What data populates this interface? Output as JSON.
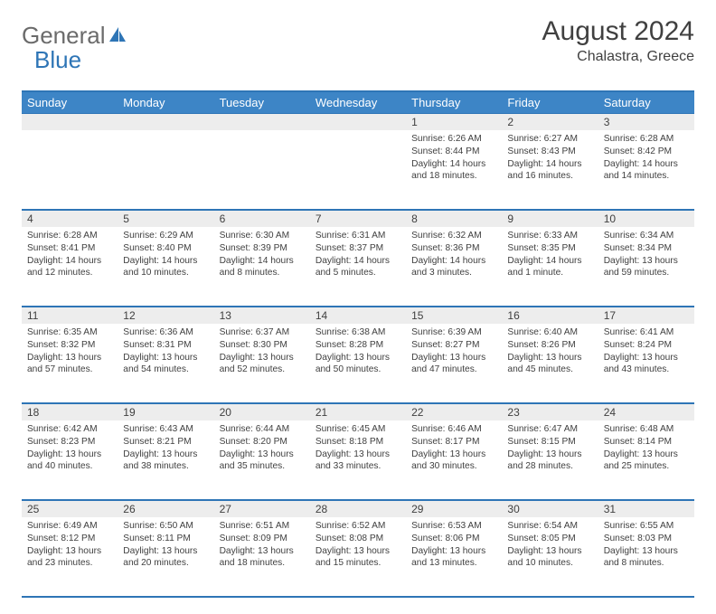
{
  "brand": {
    "general": "General",
    "blue": "Blue"
  },
  "title": {
    "month": "August 2024",
    "location": "Chalastra, Greece"
  },
  "colors": {
    "header_bg": "#3d85c6",
    "border": "#2e75b6",
    "daynum_bg": "#ededed",
    "text": "#404040",
    "logo_gray": "#6b6b6b",
    "logo_blue": "#2e75b6"
  },
  "weekdays": [
    "Sunday",
    "Monday",
    "Tuesday",
    "Wednesday",
    "Thursday",
    "Friday",
    "Saturday"
  ],
  "weeks": [
    {
      "nums": [
        "",
        "",
        "",
        "",
        "1",
        "2",
        "3"
      ],
      "cells": [
        null,
        null,
        null,
        null,
        {
          "sunrise": "6:26 AM",
          "sunset": "8:44 PM",
          "daylight": "14 hours and 18 minutes."
        },
        {
          "sunrise": "6:27 AM",
          "sunset": "8:43 PM",
          "daylight": "14 hours and 16 minutes."
        },
        {
          "sunrise": "6:28 AM",
          "sunset": "8:42 PM",
          "daylight": "14 hours and 14 minutes."
        }
      ]
    },
    {
      "nums": [
        "4",
        "5",
        "6",
        "7",
        "8",
        "9",
        "10"
      ],
      "cells": [
        {
          "sunrise": "6:28 AM",
          "sunset": "8:41 PM",
          "daylight": "14 hours and 12 minutes."
        },
        {
          "sunrise": "6:29 AM",
          "sunset": "8:40 PM",
          "daylight": "14 hours and 10 minutes."
        },
        {
          "sunrise": "6:30 AM",
          "sunset": "8:39 PM",
          "daylight": "14 hours and 8 minutes."
        },
        {
          "sunrise": "6:31 AM",
          "sunset": "8:37 PM",
          "daylight": "14 hours and 5 minutes."
        },
        {
          "sunrise": "6:32 AM",
          "sunset": "8:36 PM",
          "daylight": "14 hours and 3 minutes."
        },
        {
          "sunrise": "6:33 AM",
          "sunset": "8:35 PM",
          "daylight": "14 hours and 1 minute."
        },
        {
          "sunrise": "6:34 AM",
          "sunset": "8:34 PM",
          "daylight": "13 hours and 59 minutes."
        }
      ]
    },
    {
      "nums": [
        "11",
        "12",
        "13",
        "14",
        "15",
        "16",
        "17"
      ],
      "cells": [
        {
          "sunrise": "6:35 AM",
          "sunset": "8:32 PM",
          "daylight": "13 hours and 57 minutes."
        },
        {
          "sunrise": "6:36 AM",
          "sunset": "8:31 PM",
          "daylight": "13 hours and 54 minutes."
        },
        {
          "sunrise": "6:37 AM",
          "sunset": "8:30 PM",
          "daylight": "13 hours and 52 minutes."
        },
        {
          "sunrise": "6:38 AM",
          "sunset": "8:28 PM",
          "daylight": "13 hours and 50 minutes."
        },
        {
          "sunrise": "6:39 AM",
          "sunset": "8:27 PM",
          "daylight": "13 hours and 47 minutes."
        },
        {
          "sunrise": "6:40 AM",
          "sunset": "8:26 PM",
          "daylight": "13 hours and 45 minutes."
        },
        {
          "sunrise": "6:41 AM",
          "sunset": "8:24 PM",
          "daylight": "13 hours and 43 minutes."
        }
      ]
    },
    {
      "nums": [
        "18",
        "19",
        "20",
        "21",
        "22",
        "23",
        "24"
      ],
      "cells": [
        {
          "sunrise": "6:42 AM",
          "sunset": "8:23 PM",
          "daylight": "13 hours and 40 minutes."
        },
        {
          "sunrise": "6:43 AM",
          "sunset": "8:21 PM",
          "daylight": "13 hours and 38 minutes."
        },
        {
          "sunrise": "6:44 AM",
          "sunset": "8:20 PM",
          "daylight": "13 hours and 35 minutes."
        },
        {
          "sunrise": "6:45 AM",
          "sunset": "8:18 PM",
          "daylight": "13 hours and 33 minutes."
        },
        {
          "sunrise": "6:46 AM",
          "sunset": "8:17 PM",
          "daylight": "13 hours and 30 minutes."
        },
        {
          "sunrise": "6:47 AM",
          "sunset": "8:15 PM",
          "daylight": "13 hours and 28 minutes."
        },
        {
          "sunrise": "6:48 AM",
          "sunset": "8:14 PM",
          "daylight": "13 hours and 25 minutes."
        }
      ]
    },
    {
      "nums": [
        "25",
        "26",
        "27",
        "28",
        "29",
        "30",
        "31"
      ],
      "cells": [
        {
          "sunrise": "6:49 AM",
          "sunset": "8:12 PM",
          "daylight": "13 hours and 23 minutes."
        },
        {
          "sunrise": "6:50 AM",
          "sunset": "8:11 PM",
          "daylight": "13 hours and 20 minutes."
        },
        {
          "sunrise": "6:51 AM",
          "sunset": "8:09 PM",
          "daylight": "13 hours and 18 minutes."
        },
        {
          "sunrise": "6:52 AM",
          "sunset": "8:08 PM",
          "daylight": "13 hours and 15 minutes."
        },
        {
          "sunrise": "6:53 AM",
          "sunset": "8:06 PM",
          "daylight": "13 hours and 13 minutes."
        },
        {
          "sunrise": "6:54 AM",
          "sunset": "8:05 PM",
          "daylight": "13 hours and 10 minutes."
        },
        {
          "sunrise": "6:55 AM",
          "sunset": "8:03 PM",
          "daylight": "13 hours and 8 minutes."
        }
      ]
    }
  ],
  "labels": {
    "sunrise": "Sunrise:",
    "sunset": "Sunset:",
    "daylight": "Daylight:"
  }
}
